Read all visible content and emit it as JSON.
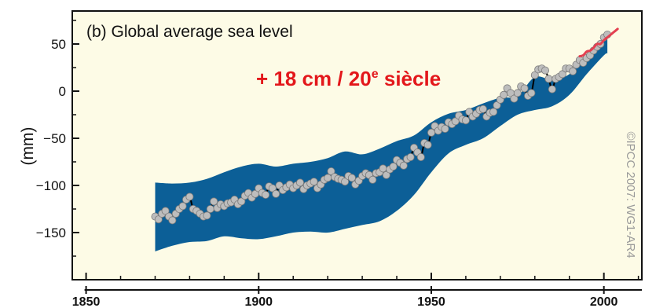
{
  "chart_data": {
    "type": "line",
    "title": "(b) Global average sea level",
    "annotation": {
      "main": "+ 18 cm / 20",
      "superscript": "e",
      "rest": " siècle",
      "color": "#e3171b"
    },
    "ylabel": "(mm)",
    "credit": "©IPCC 2007: WG1-AR4",
    "xlim": [
      1846,
      2011
    ],
    "ylim": [
      -200,
      85
    ],
    "x_ticks": [
      1850,
      1900,
      1950,
      2000
    ],
    "y_ticks": [
      50,
      0,
      -50,
      -100,
      -150
    ],
    "grid": false,
    "colors": {
      "panel_bg": "#fdfbe6",
      "band": "#0c5f97",
      "points_fill": "#bdbdbd",
      "points_stroke": "#7a7a7a",
      "mean_line": "#000000",
      "satellite": "#e34050"
    },
    "series": [
      {
        "kind": "uncertainty-band",
        "x": [
          1870,
          1875,
          1880,
          1885,
          1890,
          1895,
          1900,
          1905,
          1910,
          1915,
          1920,
          1925,
          1930,
          1935,
          1940,
          1945,
          1950,
          1955,
          1960,
          1965,
          1970,
          1975,
          1980,
          1985,
          1990,
          1995,
          2000,
          2001
        ],
        "upper": [
          -97,
          -98,
          -97,
          -93,
          -86,
          -80,
          -77,
          -80,
          -77,
          -75,
          -71,
          -64,
          -67,
          -61,
          -53,
          -47,
          -33,
          -24,
          -20,
          -13,
          -7,
          -5,
          15,
          12,
          18,
          38,
          55,
          60
        ],
        "lower": [
          -170,
          -164,
          -160,
          -159,
          -154,
          -156,
          -157,
          -154,
          -150,
          -149,
          -150,
          -146,
          -142,
          -138,
          -127,
          -110,
          -86,
          -66,
          -57,
          -50,
          -37,
          -25,
          -20,
          -16,
          -4,
          18,
          38,
          40
        ]
      },
      {
        "kind": "annual-means",
        "x": [
          1870,
          1871,
          1872,
          1873,
          1874,
          1875,
          1876,
          1877,
          1878,
          1879,
          1880,
          1881,
          1882,
          1883,
          1884,
          1885,
          1886,
          1887,
          1888,
          1889,
          1890,
          1891,
          1892,
          1893,
          1894,
          1895,
          1896,
          1897,
          1898,
          1899,
          1900,
          1901,
          1902,
          1903,
          1904,
          1905,
          1906,
          1907,
          1908,
          1909,
          1910,
          1911,
          1912,
          1913,
          1914,
          1915,
          1916,
          1917,
          1918,
          1919,
          1920,
          1921,
          1922,
          1923,
          1924,
          1925,
          1926,
          1927,
          1928,
          1929,
          1930,
          1931,
          1932,
          1933,
          1934,
          1935,
          1936,
          1937,
          1938,
          1939,
          1940,
          1941,
          1942,
          1943,
          1944,
          1945,
          1946,
          1947,
          1948,
          1949,
          1950,
          1951,
          1952,
          1953,
          1954,
          1955,
          1956,
          1957,
          1958,
          1959,
          1960,
          1961,
          1962,
          1963,
          1964,
          1965,
          1966,
          1967,
          1968,
          1969,
          1970,
          1971,
          1972,
          1973,
          1974,
          1975,
          1976,
          1977,
          1978,
          1979,
          1980,
          1981,
          1982,
          1983,
          1984,
          1985,
          1986,
          1987,
          1988,
          1989,
          1990,
          1991,
          1992,
          1993,
          1994,
          1995,
          1996,
          1997,
          1998,
          1999,
          2000,
          2001
        ],
        "y": [
          -133,
          -136,
          -130,
          -127,
          -133,
          -137,
          -130,
          -125,
          -122,
          -115,
          -112,
          -125,
          -127,
          -130,
          -133,
          -132,
          -125,
          -117,
          -124,
          -120,
          -122,
          -119,
          -118,
          -115,
          -120,
          -117,
          -111,
          -108,
          -113,
          -109,
          -103,
          -108,
          -110,
          -101,
          -103,
          -109,
          -100,
          -105,
          -102,
          -99,
          -103,
          -100,
          -97,
          -104,
          -100,
          -98,
          -96,
          -103,
          -99,
          -94,
          -92,
          -85,
          -91,
          -93,
          -94,
          -96,
          -90,
          -92,
          -99,
          -95,
          -90,
          -87,
          -89,
          -94,
          -87,
          -86,
          -82,
          -89,
          -83,
          -80,
          -73,
          -76,
          -79,
          -72,
          -70,
          -60,
          -65,
          -70,
          -55,
          -57,
          -44,
          -37,
          -42,
          -38,
          -40,
          -33,
          -35,
          -32,
          -26,
          -30,
          -31,
          -22,
          -27,
          -24,
          -20,
          -19,
          -27,
          -23,
          -22,
          -15,
          -9,
          -4,
          3,
          -2,
          -8,
          -2,
          5,
          3,
          -5,
          -2,
          17,
          23,
          24,
          22,
          13,
          2,
          13,
          15,
          18,
          24,
          24,
          21,
          28,
          33,
          30,
          35,
          38,
          43,
          47,
          50,
          57,
          60
        ]
      },
      {
        "kind": "satellite",
        "x": [
          1993,
          1994,
          1995,
          1996,
          1997,
          1998,
          1999,
          2000,
          2001,
          2002,
          2003,
          2004
        ],
        "y": [
          37,
          38,
          42,
          43,
          46,
          50,
          50,
          54,
          57,
          60,
          63,
          66
        ]
      }
    ]
  }
}
